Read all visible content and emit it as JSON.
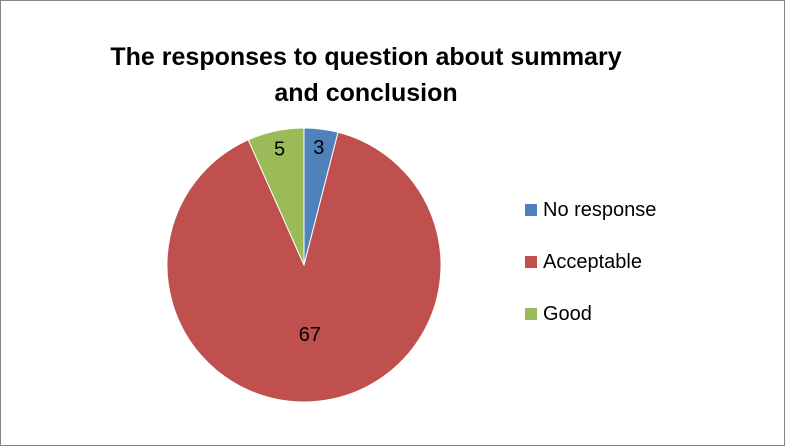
{
  "chart_data": {
    "type": "pie",
    "title_lines": [
      "The responses to question about summary",
      "and conclusion"
    ],
    "categories": [
      "No response",
      "Acceptable",
      "Good"
    ],
    "values": [
      3,
      67,
      5
    ],
    "colors": [
      "#4F81BD",
      "#C0504D",
      "#9BBB59"
    ],
    "data_labels": [
      "3",
      "67",
      "5"
    ],
    "legend_position": "right",
    "start_angle": "12 o'clock",
    "direction": "clockwise"
  }
}
